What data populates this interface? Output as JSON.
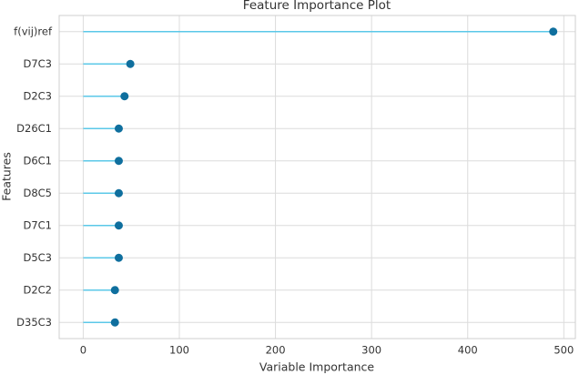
{
  "chart_data": {
    "type": "lollipop",
    "title": "Feature Importance Plot",
    "x_label": "Variable Importance",
    "y_label": "Features",
    "categories": [
      "f(vij)ref",
      "D7C3",
      "D2C3",
      "D26C1",
      "D6C1",
      "D8C5",
      "D7C1",
      "D5C3",
      "D2C2",
      "D35C3"
    ],
    "values": [
      489,
      49,
      43,
      37,
      37,
      37,
      37,
      37,
      33,
      33
    ],
    "line_color": "#5bc8e8",
    "color": "#0f6f9e",
    "xlim": [
      -25,
      512
    ],
    "xticks": [
      0,
      100,
      200,
      300,
      400,
      500
    ],
    "grid": true
  }
}
